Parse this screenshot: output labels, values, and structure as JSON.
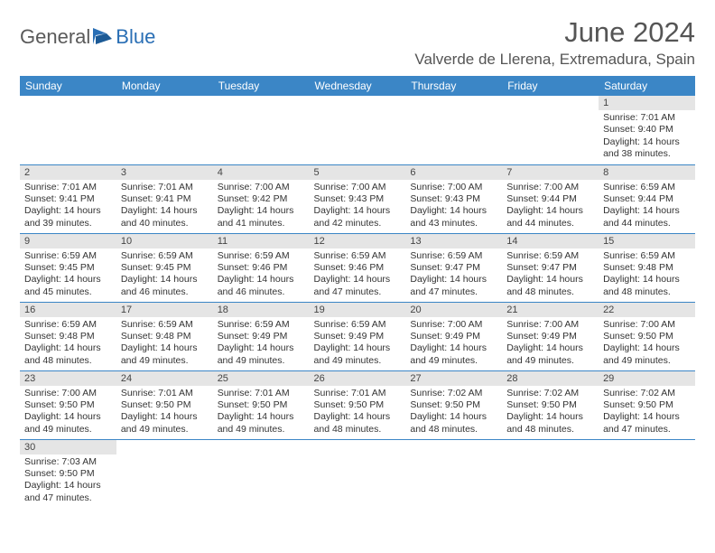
{
  "logo": {
    "text1": "General",
    "text2": "Blue"
  },
  "title": "June 2024",
  "location": "Valverde de Llerena, Extremadura, Spain",
  "colors": {
    "header_bg": "#3b86c6",
    "header_text": "#ffffff",
    "daynum_bg": "#e5e5e5",
    "cell_border": "#3b86c6",
    "title_color": "#555555",
    "logo_gray": "#5a5a5a",
    "logo_blue": "#2a6fb5",
    "body_text": "#333333"
  },
  "day_headers": [
    "Sunday",
    "Monday",
    "Tuesday",
    "Wednesday",
    "Thursday",
    "Friday",
    "Saturday"
  ],
  "weeks": [
    [
      {
        "day": "",
        "sunrise": "",
        "sunset": "",
        "daylight1": "",
        "daylight2": "",
        "empty": true
      },
      {
        "day": "",
        "sunrise": "",
        "sunset": "",
        "daylight1": "",
        "daylight2": "",
        "empty": true
      },
      {
        "day": "",
        "sunrise": "",
        "sunset": "",
        "daylight1": "",
        "daylight2": "",
        "empty": true
      },
      {
        "day": "",
        "sunrise": "",
        "sunset": "",
        "daylight1": "",
        "daylight2": "",
        "empty": true
      },
      {
        "day": "",
        "sunrise": "",
        "sunset": "",
        "daylight1": "",
        "daylight2": "",
        "empty": true
      },
      {
        "day": "",
        "sunrise": "",
        "sunset": "",
        "daylight1": "",
        "daylight2": "",
        "empty": true
      },
      {
        "day": "1",
        "sunrise": "Sunrise: 7:01 AM",
        "sunset": "Sunset: 9:40 PM",
        "daylight1": "Daylight: 14 hours",
        "daylight2": "and 38 minutes."
      }
    ],
    [
      {
        "day": "2",
        "sunrise": "Sunrise: 7:01 AM",
        "sunset": "Sunset: 9:41 PM",
        "daylight1": "Daylight: 14 hours",
        "daylight2": "and 39 minutes."
      },
      {
        "day": "3",
        "sunrise": "Sunrise: 7:01 AM",
        "sunset": "Sunset: 9:41 PM",
        "daylight1": "Daylight: 14 hours",
        "daylight2": "and 40 minutes."
      },
      {
        "day": "4",
        "sunrise": "Sunrise: 7:00 AM",
        "sunset": "Sunset: 9:42 PM",
        "daylight1": "Daylight: 14 hours",
        "daylight2": "and 41 minutes."
      },
      {
        "day": "5",
        "sunrise": "Sunrise: 7:00 AM",
        "sunset": "Sunset: 9:43 PM",
        "daylight1": "Daylight: 14 hours",
        "daylight2": "and 42 minutes."
      },
      {
        "day": "6",
        "sunrise": "Sunrise: 7:00 AM",
        "sunset": "Sunset: 9:43 PM",
        "daylight1": "Daylight: 14 hours",
        "daylight2": "and 43 minutes."
      },
      {
        "day": "7",
        "sunrise": "Sunrise: 7:00 AM",
        "sunset": "Sunset: 9:44 PM",
        "daylight1": "Daylight: 14 hours",
        "daylight2": "and 44 minutes."
      },
      {
        "day": "8",
        "sunrise": "Sunrise: 6:59 AM",
        "sunset": "Sunset: 9:44 PM",
        "daylight1": "Daylight: 14 hours",
        "daylight2": "and 44 minutes."
      }
    ],
    [
      {
        "day": "9",
        "sunrise": "Sunrise: 6:59 AM",
        "sunset": "Sunset: 9:45 PM",
        "daylight1": "Daylight: 14 hours",
        "daylight2": "and 45 minutes."
      },
      {
        "day": "10",
        "sunrise": "Sunrise: 6:59 AM",
        "sunset": "Sunset: 9:45 PM",
        "daylight1": "Daylight: 14 hours",
        "daylight2": "and 46 minutes."
      },
      {
        "day": "11",
        "sunrise": "Sunrise: 6:59 AM",
        "sunset": "Sunset: 9:46 PM",
        "daylight1": "Daylight: 14 hours",
        "daylight2": "and 46 minutes."
      },
      {
        "day": "12",
        "sunrise": "Sunrise: 6:59 AM",
        "sunset": "Sunset: 9:46 PM",
        "daylight1": "Daylight: 14 hours",
        "daylight2": "and 47 minutes."
      },
      {
        "day": "13",
        "sunrise": "Sunrise: 6:59 AM",
        "sunset": "Sunset: 9:47 PM",
        "daylight1": "Daylight: 14 hours",
        "daylight2": "and 47 minutes."
      },
      {
        "day": "14",
        "sunrise": "Sunrise: 6:59 AM",
        "sunset": "Sunset: 9:47 PM",
        "daylight1": "Daylight: 14 hours",
        "daylight2": "and 48 minutes."
      },
      {
        "day": "15",
        "sunrise": "Sunrise: 6:59 AM",
        "sunset": "Sunset: 9:48 PM",
        "daylight1": "Daylight: 14 hours",
        "daylight2": "and 48 minutes."
      }
    ],
    [
      {
        "day": "16",
        "sunrise": "Sunrise: 6:59 AM",
        "sunset": "Sunset: 9:48 PM",
        "daylight1": "Daylight: 14 hours",
        "daylight2": "and 48 minutes."
      },
      {
        "day": "17",
        "sunrise": "Sunrise: 6:59 AM",
        "sunset": "Sunset: 9:48 PM",
        "daylight1": "Daylight: 14 hours",
        "daylight2": "and 49 minutes."
      },
      {
        "day": "18",
        "sunrise": "Sunrise: 6:59 AM",
        "sunset": "Sunset: 9:49 PM",
        "daylight1": "Daylight: 14 hours",
        "daylight2": "and 49 minutes."
      },
      {
        "day": "19",
        "sunrise": "Sunrise: 6:59 AM",
        "sunset": "Sunset: 9:49 PM",
        "daylight1": "Daylight: 14 hours",
        "daylight2": "and 49 minutes."
      },
      {
        "day": "20",
        "sunrise": "Sunrise: 7:00 AM",
        "sunset": "Sunset: 9:49 PM",
        "daylight1": "Daylight: 14 hours",
        "daylight2": "and 49 minutes."
      },
      {
        "day": "21",
        "sunrise": "Sunrise: 7:00 AM",
        "sunset": "Sunset: 9:49 PM",
        "daylight1": "Daylight: 14 hours",
        "daylight2": "and 49 minutes."
      },
      {
        "day": "22",
        "sunrise": "Sunrise: 7:00 AM",
        "sunset": "Sunset: 9:50 PM",
        "daylight1": "Daylight: 14 hours",
        "daylight2": "and 49 minutes."
      }
    ],
    [
      {
        "day": "23",
        "sunrise": "Sunrise: 7:00 AM",
        "sunset": "Sunset: 9:50 PM",
        "daylight1": "Daylight: 14 hours",
        "daylight2": "and 49 minutes."
      },
      {
        "day": "24",
        "sunrise": "Sunrise: 7:01 AM",
        "sunset": "Sunset: 9:50 PM",
        "daylight1": "Daylight: 14 hours",
        "daylight2": "and 49 minutes."
      },
      {
        "day": "25",
        "sunrise": "Sunrise: 7:01 AM",
        "sunset": "Sunset: 9:50 PM",
        "daylight1": "Daylight: 14 hours",
        "daylight2": "and 49 minutes."
      },
      {
        "day": "26",
        "sunrise": "Sunrise: 7:01 AM",
        "sunset": "Sunset: 9:50 PM",
        "daylight1": "Daylight: 14 hours",
        "daylight2": "and 48 minutes."
      },
      {
        "day": "27",
        "sunrise": "Sunrise: 7:02 AM",
        "sunset": "Sunset: 9:50 PM",
        "daylight1": "Daylight: 14 hours",
        "daylight2": "and 48 minutes."
      },
      {
        "day": "28",
        "sunrise": "Sunrise: 7:02 AM",
        "sunset": "Sunset: 9:50 PM",
        "daylight1": "Daylight: 14 hours",
        "daylight2": "and 48 minutes."
      },
      {
        "day": "29",
        "sunrise": "Sunrise: 7:02 AM",
        "sunset": "Sunset: 9:50 PM",
        "daylight1": "Daylight: 14 hours",
        "daylight2": "and 47 minutes."
      }
    ],
    [
      {
        "day": "30",
        "sunrise": "Sunrise: 7:03 AM",
        "sunset": "Sunset: 9:50 PM",
        "daylight1": "Daylight: 14 hours",
        "daylight2": "and 47 minutes."
      },
      {
        "day": "",
        "sunrise": "",
        "sunset": "",
        "daylight1": "",
        "daylight2": "",
        "empty": true
      },
      {
        "day": "",
        "sunrise": "",
        "sunset": "",
        "daylight1": "",
        "daylight2": "",
        "empty": true
      },
      {
        "day": "",
        "sunrise": "",
        "sunset": "",
        "daylight1": "",
        "daylight2": "",
        "empty": true
      },
      {
        "day": "",
        "sunrise": "",
        "sunset": "",
        "daylight1": "",
        "daylight2": "",
        "empty": true
      },
      {
        "day": "",
        "sunrise": "",
        "sunset": "",
        "daylight1": "",
        "daylight2": "",
        "empty": true
      },
      {
        "day": "",
        "sunrise": "",
        "sunset": "",
        "daylight1": "",
        "daylight2": "",
        "empty": true
      }
    ]
  ]
}
